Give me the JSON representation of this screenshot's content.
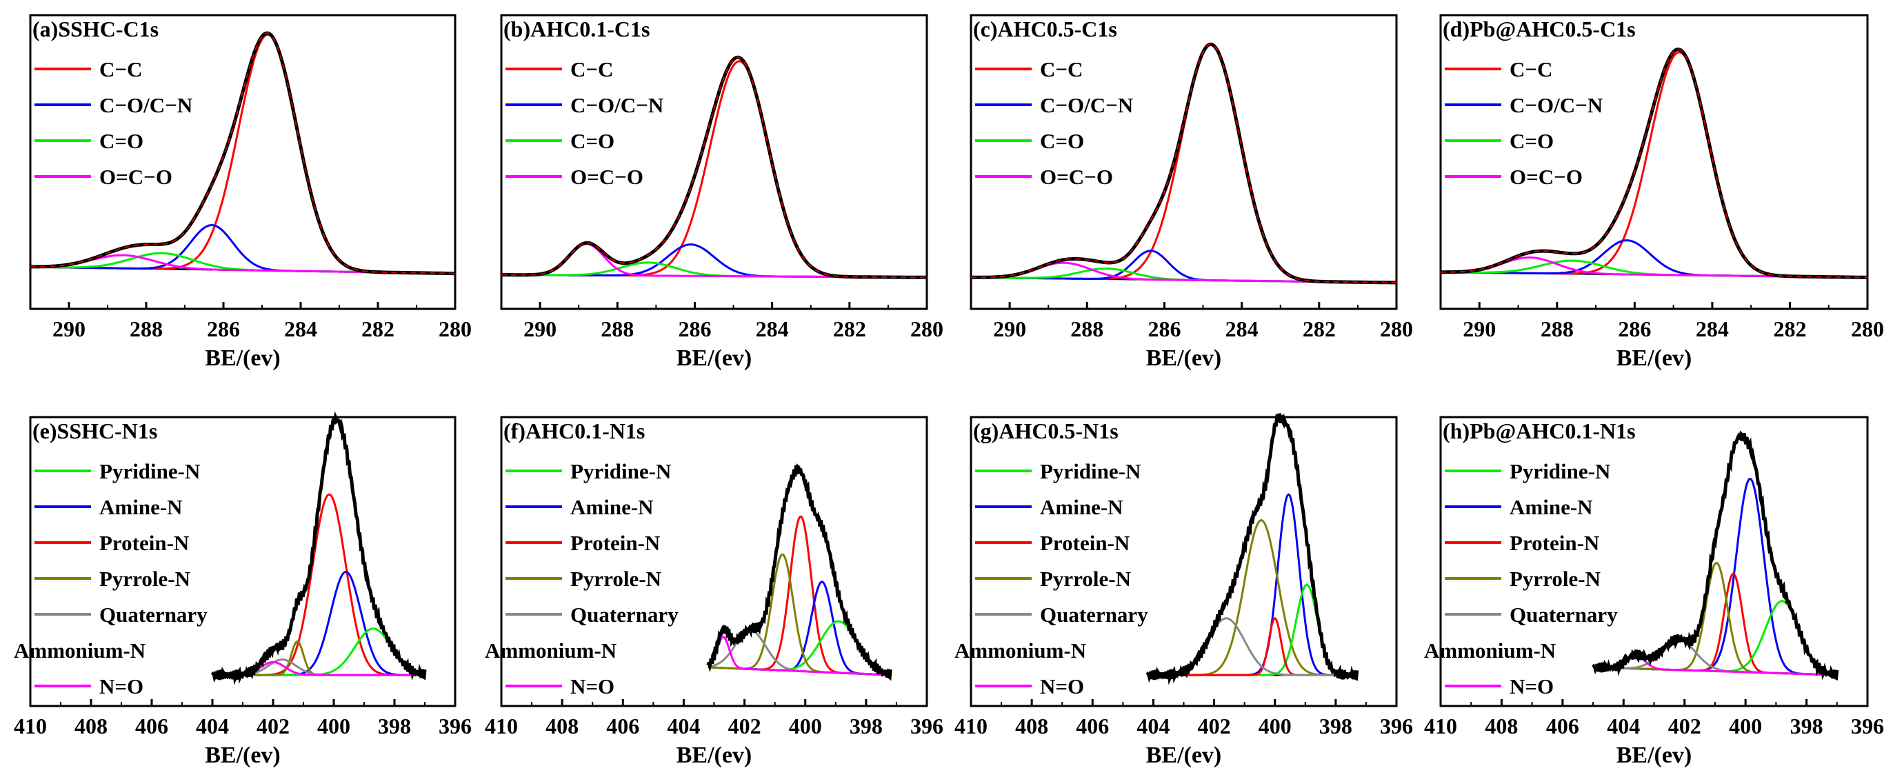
{
  "chart_data": [
    {
      "type": "line",
      "id": "a",
      "title": "(a)SSHC-C1s",
      "xlabel": "BE/(ev)",
      "xlim": [
        291,
        280
      ],
      "x_ticks": [
        "290",
        "288",
        "286",
        "284",
        "282",
        "280"
      ],
      "legend": [
        {
          "label": "C−C",
          "color": "#ff0000"
        },
        {
          "label": "C−O/C−N",
          "color": "#0000ff"
        },
        {
          "label": "C=O",
          "color": "#00ee00"
        },
        {
          "label": "O=C−O",
          "color": "#ff00ff"
        }
      ],
      "envelope_color": "#000000",
      "fit_color": "#cc0000",
      "peaks": [
        {
          "center": 284.85,
          "height": 0.9,
          "width": 0.75,
          "color": "#ff0000"
        },
        {
          "center": 286.3,
          "height": 0.17,
          "width": 0.55,
          "color": "#0000ff"
        },
        {
          "center": 287.6,
          "height": 0.06,
          "width": 0.8,
          "color": "#00ee00"
        },
        {
          "center": 288.6,
          "height": 0.05,
          "width": 0.8,
          "color": "#ff00ff"
        }
      ],
      "baseline": [
        0.04,
        0.015
      ],
      "ylim": [
        -0.12,
        1.0
      ]
    },
    {
      "type": "line",
      "id": "b",
      "title": "(b)AHC0.1-C1s",
      "xlabel": "BE/(ev)",
      "xlim": [
        291,
        280
      ],
      "x_ticks": [
        "290",
        "288",
        "286",
        "284",
        "282",
        "280"
      ],
      "legend": [
        {
          "label": "C−C",
          "color": "#ff0000"
        },
        {
          "label": "C−O/C−N",
          "color": "#0000ff"
        },
        {
          "label": "C=O",
          "color": "#00ee00"
        },
        {
          "label": "O=C−O",
          "color": "#ff00ff"
        }
      ],
      "envelope_color": "#000000",
      "fit_color": "#cc0000",
      "peaks": [
        {
          "center": 284.85,
          "height": 0.82,
          "width": 0.75,
          "color": "#ff0000"
        },
        {
          "center": 286.1,
          "height": 0.12,
          "width": 0.6,
          "color": "#0000ff"
        },
        {
          "center": 287.2,
          "height": 0.05,
          "width": 0.7,
          "color": "#00ee00"
        },
        {
          "center": 288.8,
          "height": 0.12,
          "width": 0.45,
          "color": "#ff00ff"
        }
      ],
      "baseline": [
        0.01,
        0.0
      ],
      "ylim": [
        -0.12,
        1.0
      ]
    },
    {
      "type": "line",
      "id": "c",
      "title": "(c)AHC0.5-C1s",
      "xlabel": "BE/(ev)",
      "xlim": [
        291,
        280
      ],
      "x_ticks": [
        "290",
        "288",
        "286",
        "284",
        "282",
        "280"
      ],
      "legend": [
        {
          "label": "C−C",
          "color": "#ff0000"
        },
        {
          "label": "C−O/C−N",
          "color": "#0000ff"
        },
        {
          "label": "C=O",
          "color": "#00ee00"
        },
        {
          "label": "O=C−O",
          "color": "#ff00ff"
        }
      ],
      "envelope_color": "#000000",
      "fit_color": "#cc0000",
      "peaks": [
        {
          "center": 284.8,
          "height": 0.9,
          "width": 0.75,
          "color": "#ff0000"
        },
        {
          "center": 286.35,
          "height": 0.11,
          "width": 0.45,
          "color": "#0000ff"
        },
        {
          "center": 287.5,
          "height": 0.04,
          "width": 0.7,
          "color": "#00ee00"
        },
        {
          "center": 288.6,
          "height": 0.06,
          "width": 0.7,
          "color": "#ff00ff"
        }
      ],
      "baseline": [
        0.0,
        -0.02
      ],
      "ylim": [
        -0.12,
        1.0
      ]
    },
    {
      "type": "line",
      "id": "d",
      "title": "(d)Pb@AHC0.5-C1s",
      "xlabel": "BE/(ev)",
      "xlim": [
        291,
        280
      ],
      "x_ticks": [
        "290",
        "288",
        "286",
        "284",
        "282",
        "280"
      ],
      "legend": [
        {
          "label": "C−C",
          "color": "#ff0000"
        },
        {
          "label": "C−O/C−N",
          "color": "#0000ff"
        },
        {
          "label": "C=O",
          "color": "#00ee00"
        },
        {
          "label": "O=C−O",
          "color": "#ff00ff"
        }
      ],
      "envelope_color": "#000000",
      "fit_color": "#cc0000",
      "peaks": [
        {
          "center": 284.85,
          "height": 0.85,
          "width": 0.75,
          "color": "#ff0000"
        },
        {
          "center": 286.2,
          "height": 0.13,
          "width": 0.6,
          "color": "#0000ff"
        },
        {
          "center": 287.6,
          "height": 0.05,
          "width": 0.8,
          "color": "#00ee00"
        },
        {
          "center": 288.7,
          "height": 0.06,
          "width": 0.7,
          "color": "#ff00ff"
        }
      ],
      "baseline": [
        0.02,
        0.0
      ],
      "ylim": [
        -0.12,
        1.0
      ]
    },
    {
      "type": "line",
      "id": "e",
      "title": "(e)SSHC-N1s",
      "xlabel": "BE/(ev)",
      "xlim": [
        410,
        396
      ],
      "x_ticks": [
        "410",
        "408",
        "406",
        "404",
        "402",
        "400",
        "398",
        "396"
      ],
      "legend": [
        {
          "label": "Pyridine-N",
          "color": "#00ee00"
        },
        {
          "label": "Amine-N",
          "color": "#0000ff"
        },
        {
          "label": "Protein-N",
          "color": "#ff0000"
        },
        {
          "label": "Pyrrole-N",
          "color": "#808000"
        },
        {
          "label": "Quaternary",
          "color": "#888888"
        },
        {
          "label": "Ammonium-N",
          "color": null
        },
        {
          "label": "N=O",
          "color": "#ff00ff"
        }
      ],
      "envelope_color": "#000000",
      "data_range": [
        404,
        397
      ],
      "peaks": [
        {
          "center": 400.15,
          "height": 0.7,
          "width": 0.55,
          "color": "#ff0000"
        },
        {
          "center": 399.6,
          "height": 0.4,
          "width": 0.5,
          "color": "#0000ff"
        },
        {
          "center": 398.7,
          "height": 0.18,
          "width": 0.6,
          "color": "#00ee00"
        },
        {
          "center": 401.2,
          "height": 0.13,
          "width": 0.2,
          "color": "#808000"
        },
        {
          "center": 401.7,
          "height": 0.06,
          "width": 0.45,
          "color": "#888888"
        },
        {
          "center": 402.0,
          "height": 0.05,
          "width": 0.4,
          "color": "#ff00ff"
        }
      ],
      "baseline": [
        0.0,
        0.0
      ],
      "ylim": [
        -0.12,
        1.0
      ]
    },
    {
      "type": "line",
      "id": "f",
      "title": "(f)AHC0.1-N1s",
      "xlabel": "BE/(ev)",
      "xlim": [
        410,
        396
      ],
      "x_ticks": [
        "410",
        "408",
        "406",
        "404",
        "402",
        "400",
        "398",
        "396"
      ],
      "legend": [
        {
          "label": "Pyridine-N",
          "color": "#00ee00"
        },
        {
          "label": "Amine-N",
          "color": "#0000ff"
        },
        {
          "label": "Protein-N",
          "color": "#ff0000"
        },
        {
          "label": "Pyrrole-N",
          "color": "#808000"
        },
        {
          "label": "Quaternary",
          "color": "#888888"
        },
        {
          "label": "Ammonium-N",
          "color": null
        },
        {
          "label": "N=O",
          "color": "#ff00ff"
        }
      ],
      "envelope_color": "#000000",
      "data_range": [
        403.2,
        397.2
      ],
      "peaks": [
        {
          "center": 400.15,
          "height": 0.6,
          "width": 0.35,
          "color": "#ff0000"
        },
        {
          "center": 399.45,
          "height": 0.35,
          "width": 0.35,
          "color": "#0000ff"
        },
        {
          "center": 398.9,
          "height": 0.2,
          "width": 0.6,
          "color": "#00ee00"
        },
        {
          "center": 400.75,
          "height": 0.45,
          "width": 0.35,
          "color": "#808000"
        },
        {
          "center": 401.8,
          "height": 0.15,
          "width": 0.5,
          "color": "#888888"
        },
        {
          "center": 402.7,
          "height": 0.12,
          "width": 0.2,
          "color": "#ff00ff"
        }
      ],
      "baseline": [
        0.03,
        0.0
      ],
      "ylim": [
        -0.12,
        1.0
      ]
    },
    {
      "type": "line",
      "id": "g",
      "title": "(g)AHC0.5-N1s",
      "xlabel": "BE/(ev)",
      "xlim": [
        410,
        396
      ],
      "x_ticks": [
        "410",
        "408",
        "406",
        "404",
        "402",
        "400",
        "398",
        "396"
      ],
      "legend": [
        {
          "label": "Pyridine-N",
          "color": "#00ee00"
        },
        {
          "label": "Amine-N",
          "color": "#0000ff"
        },
        {
          "label": "Protein-N",
          "color": "#ff0000"
        },
        {
          "label": "Pyrrole-N",
          "color": "#808000"
        },
        {
          "label": "Quaternary",
          "color": "#888888"
        },
        {
          "label": "Ammonium-N",
          "color": null
        },
        {
          "label": "N=O",
          "color": "#ff00ff"
        }
      ],
      "envelope_color": "#000000",
      "data_range": [
        404.2,
        397.3
      ],
      "peaks": [
        {
          "center": 399.55,
          "height": 0.7,
          "width": 0.35,
          "color": "#0000ff"
        },
        {
          "center": 400.45,
          "height": 0.6,
          "width": 0.55,
          "color": "#808000"
        },
        {
          "center": 398.95,
          "height": 0.35,
          "width": 0.35,
          "color": "#00ee00"
        },
        {
          "center": 400.0,
          "height": 0.22,
          "width": 0.2,
          "color": "#ff0000"
        },
        {
          "center": 401.6,
          "height": 0.22,
          "width": 0.6,
          "color": "#888888"
        }
      ],
      "baseline": [
        0.0,
        0.0
      ],
      "ylim": [
        -0.12,
        1.0
      ]
    },
    {
      "type": "line",
      "id": "h",
      "title": "(h)Pb@AHC0.1-N1s",
      "xlabel": "BE/(ev)",
      "xlim": [
        410,
        396
      ],
      "x_ticks": [
        "410",
        "408",
        "406",
        "404",
        "402",
        "400",
        "398",
        "396"
      ],
      "legend": [
        {
          "label": "Pyridine-N",
          "color": "#00ee00"
        },
        {
          "label": "Amine-N",
          "color": "#0000ff"
        },
        {
          "label": "Protein-N",
          "color": "#ff0000"
        },
        {
          "label": "Pyrrole-N",
          "color": "#808000"
        },
        {
          "label": "Quaternary",
          "color": "#888888"
        },
        {
          "label": "Ammonium-N",
          "color": null
        },
        {
          "label": "N=O",
          "color": "#ff00ff"
        }
      ],
      "envelope_color": "#000000",
      "data_range": [
        405,
        397
      ],
      "peaks": [
        {
          "center": 399.85,
          "height": 0.75,
          "width": 0.45,
          "color": "#0000ff"
        },
        {
          "center": 400.4,
          "height": 0.38,
          "width": 0.3,
          "color": "#ff0000"
        },
        {
          "center": 398.8,
          "height": 0.28,
          "width": 0.55,
          "color": "#00ee00"
        },
        {
          "center": 400.95,
          "height": 0.42,
          "width": 0.35,
          "color": "#808000"
        },
        {
          "center": 402.2,
          "height": 0.12,
          "width": 0.55,
          "color": "#888888"
        },
        {
          "center": 403.6,
          "height": 0.05,
          "width": 0.3,
          "color": "#ff00ff"
        }
      ],
      "baseline": [
        0.03,
        0.0
      ],
      "ylim": [
        -0.12,
        1.0
      ]
    }
  ]
}
